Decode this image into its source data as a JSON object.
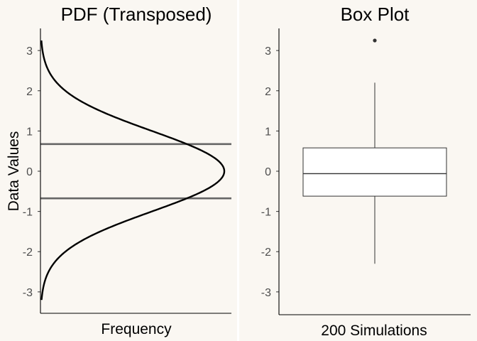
{
  "chart_data": [
    {
      "type": "line",
      "title": "PDF (Transposed)",
      "xlabel": "Frequency",
      "ylabel": "Data Values",
      "ylim": [
        -3.55,
        3.55
      ],
      "yticks": [
        "-3",
        "-2",
        "-1",
        "0",
        "1",
        "2",
        "3"
      ],
      "curve": {
        "distribution": "normal",
        "mean": 0,
        "sd": 1,
        "range": [
          -3.2,
          3.25
        ]
      },
      "hlines": [
        {
          "name": "upper quartile",
          "y": 0.674
        },
        {
          "name": "lower quartile",
          "y": -0.674
        }
      ],
      "colors": {
        "curve": "#000000",
        "hlines": "#666666"
      }
    },
    {
      "type": "box",
      "title": "Box Plot",
      "xlabel": "200 Simulations",
      "ylim": [
        -3.55,
        3.55
      ],
      "yticks": [
        "-3",
        "-2",
        "-1",
        "0",
        "1",
        "2",
        "3"
      ],
      "box": {
        "whisker_low": -2.3,
        "q1": -0.62,
        "median": -0.06,
        "q3": 0.58,
        "whisker_high": 2.2,
        "outliers": [
          3.25
        ]
      },
      "colors": {
        "box_fill": "#ffffff",
        "box_stroke": "#333333"
      }
    }
  ]
}
